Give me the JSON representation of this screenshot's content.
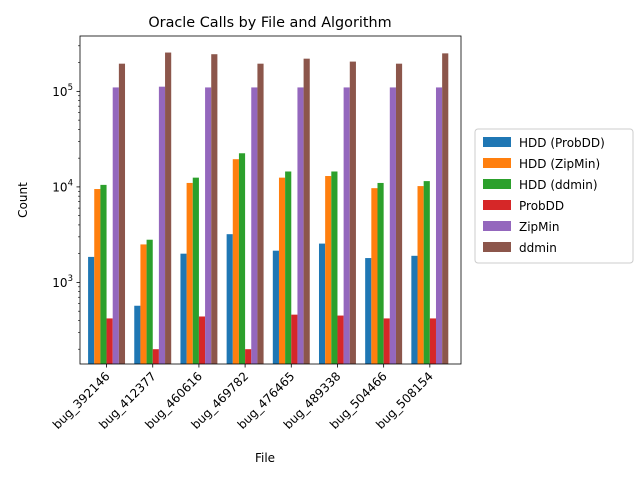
{
  "chart_data": {
    "type": "bar",
    "title": "Oracle Calls by File and Algorithm",
    "xlabel": "File",
    "ylabel": "Count",
    "yscale": "log",
    "ylim": [
      140,
      380000
    ],
    "yticks": [
      {
        "value": 1000,
        "base": "10",
        "exp": "3"
      },
      {
        "value": 10000,
        "base": "10",
        "exp": "4"
      },
      {
        "value": 100000,
        "base": "10",
        "exp": "5"
      }
    ],
    "grid": false,
    "legend_position": "right",
    "categories": [
      "bug_392146",
      "bug_412377",
      "bug_460616",
      "bug_469782",
      "bug_476465",
      "bug_489338",
      "bug_504466",
      "bug_508154"
    ],
    "series": [
      {
        "name": "HDD (ProbDD)",
        "color": "#1f77b4",
        "values": [
          1850,
          570,
          2000,
          3200,
          2150,
          2550,
          1800,
          1900
        ]
      },
      {
        "name": "HDD (ZipMin)",
        "color": "#ff7f0e",
        "values": [
          9500,
          2500,
          11000,
          19500,
          12500,
          13000,
          9700,
          10200
        ]
      },
      {
        "name": "HDD (ddmin)",
        "color": "#2ca02c",
        "values": [
          10500,
          2800,
          12500,
          22500,
          14500,
          14500,
          11000,
          11500
        ]
      },
      {
        "name": "ProbDD",
        "color": "#d62728",
        "values": [
          420,
          200,
          440,
          200,
          460,
          450,
          420,
          420
        ]
      },
      {
        "name": "ZipMin",
        "color": "#9467bd",
        "values": [
          110000,
          112000,
          110000,
          110000,
          110000,
          110000,
          110000,
          110000
        ]
      },
      {
        "name": "ddmin",
        "color": "#8c564b",
        "values": [
          195000,
          255000,
          245000,
          195000,
          220000,
          205000,
          195000,
          250000
        ]
      }
    ]
  }
}
